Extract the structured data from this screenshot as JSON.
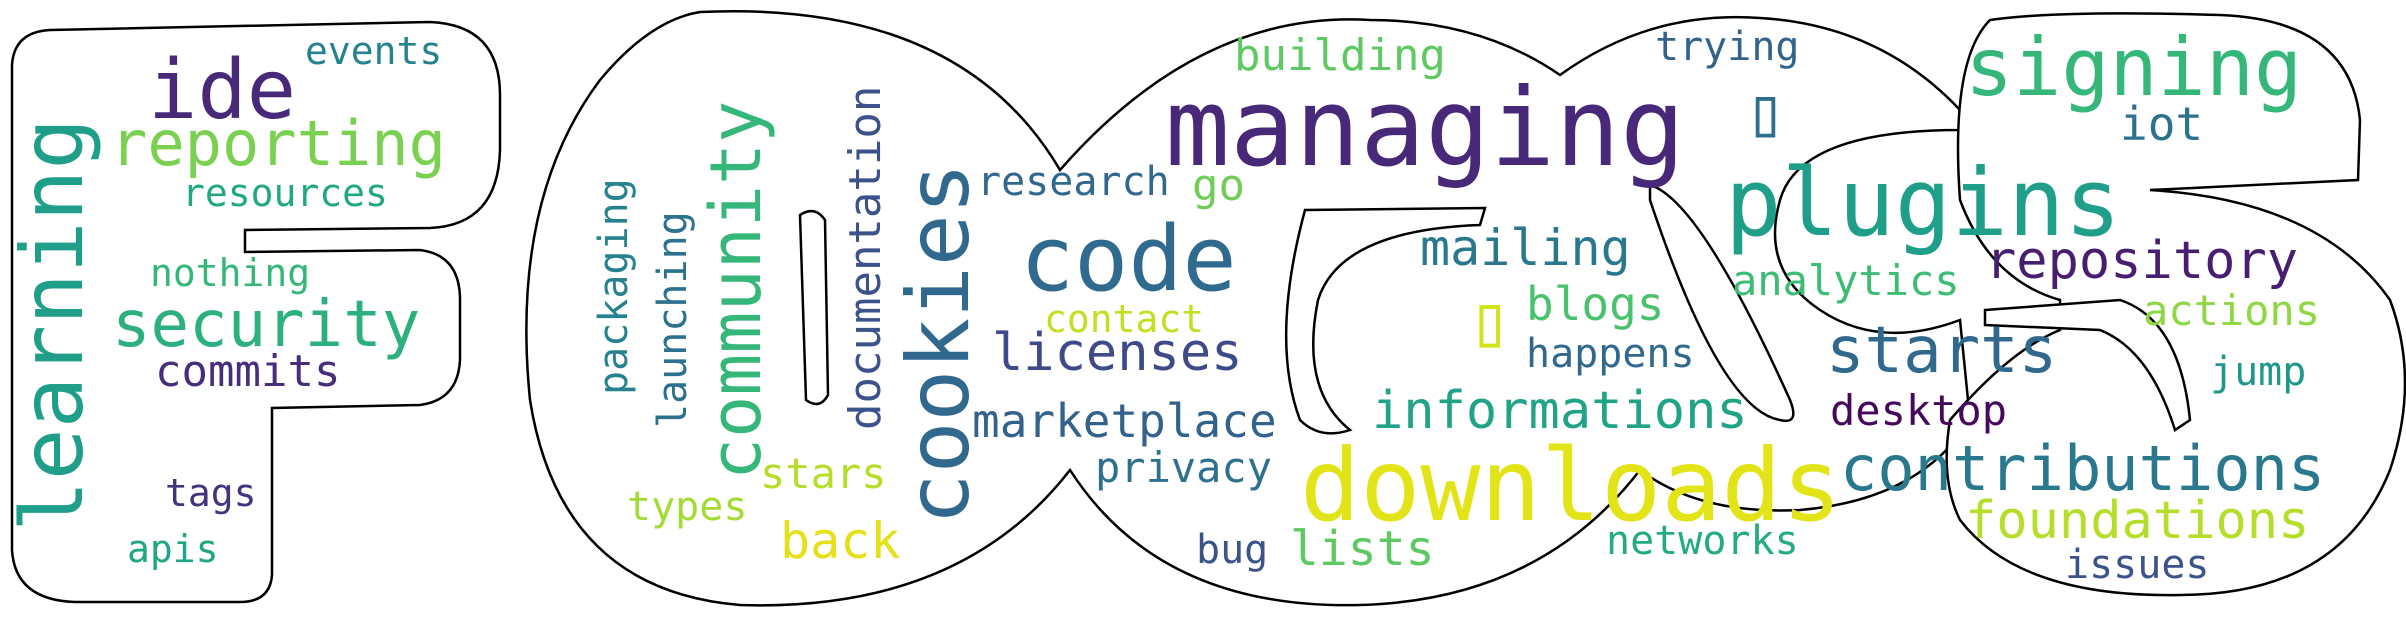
{
  "palette": {
    "purple_dark": "#44106a",
    "purple": "#482878",
    "indigo": "#3e4a89",
    "blue": "#31688e",
    "teal_blue": "#26828e",
    "teal": "#1f9e89",
    "green_teal": "#35b779",
    "green": "#6ece58",
    "lime": "#b5de2b",
    "yellow": "#e4e01a"
  },
  "words": {
    "learning": {
      "text": "learning",
      "color": "#1f9e89"
    },
    "ide": {
      "text": "ide",
      "color": "#482878"
    },
    "events": {
      "text": "events",
      "color": "#26828e"
    },
    "reporting": {
      "text": "reporting",
      "color": "#7ad151"
    },
    "resources": {
      "text": "resources",
      "color": "#22a785"
    },
    "nothing": {
      "text": "nothing",
      "color": "#35b779"
    },
    "security": {
      "text": "security",
      "color": "#2cb17e"
    },
    "commits": {
      "text": "commits",
      "color": "#472d7b"
    },
    "tags": {
      "text": "tags",
      "color": "#46337f"
    },
    "apis": {
      "text": "apis",
      "color": "#21a685"
    },
    "packaging": {
      "text": "packaging",
      "color": "#26828e"
    },
    "launching": {
      "text": "launching",
      "color": "#2c728e"
    },
    "community": {
      "text": "community",
      "color": "#35b779"
    },
    "documentation": {
      "text": "documentation",
      "color": "#3b528b"
    },
    "cookies": {
      "text": "cookies",
      "color": "#31688e"
    },
    "types": {
      "text": "types",
      "color": "#a5db36"
    },
    "stars": {
      "text": "stars",
      "color": "#b5de2b"
    },
    "back": {
      "text": "back",
      "color": "#e4e01a"
    },
    "building": {
      "text": "building",
      "color": "#5ec962"
    },
    "managing": {
      "text": "managing",
      "color": "#482878"
    },
    "research": {
      "text": "research",
      "color": "#31688e"
    },
    "go": {
      "text": "go",
      "color": "#6ece58"
    },
    "code": {
      "text": "code",
      "color": "#306a8e"
    },
    "contact": {
      "text": "contact",
      "color": "#c2df23"
    },
    "licenses": {
      "text": "licenses",
      "color": "#3e4a89"
    },
    "marketplace": {
      "text": "marketplace",
      "color": "#33638d"
    },
    "privacy": {
      "text": "privacy",
      "color": "#2d718e"
    },
    "downloads": {
      "text": "downloads",
      "color": "#e2e418"
    },
    "bug": {
      "text": "bug",
      "color": "#3b528b"
    },
    "lists": {
      "text": "lists",
      "color": "#5ec962"
    },
    "trying": {
      "text": "trying",
      "color": "#33638d"
    },
    "glyph_box_1": {
      "text": "▯",
      "color": "#2d708e"
    },
    "mailing": {
      "text": "mailing",
      "color": "#2a788e"
    },
    "glyph_box_2": {
      "text": "▯",
      "color": "#d2e21b"
    },
    "blogs": {
      "text": "blogs",
      "color": "#4ac16d"
    },
    "happens": {
      "text": "happens",
      "color": "#31688e"
    },
    "informations": {
      "text": "informations",
      "color": "#20a386"
    },
    "networks": {
      "text": "networks",
      "color": "#25ab82"
    },
    "signing": {
      "text": "signing",
      "color": "#35b779"
    },
    "iot": {
      "text": "iot",
      "color": "#2c728e"
    },
    "plugins": {
      "text": "plugins",
      "color": "#1f9e89"
    },
    "analytics": {
      "text": "analytics",
      "color": "#3dbc74"
    },
    "repository": {
      "text": "repository",
      "color": "#481f70"
    },
    "actions": {
      "text": "actions",
      "color": "#8fd744"
    },
    "starts": {
      "text": "starts",
      "color": "#31688e"
    },
    "jump": {
      "text": "jump",
      "color": "#1f988b"
    },
    "desktop": {
      "text": "desktop",
      "color": "#46085c"
    },
    "contributions": {
      "text": "contributions",
      "color": "#2a788e"
    },
    "foundations": {
      "text": "foundations",
      "color": "#b5de2b"
    },
    "issues": {
      "text": "issues",
      "color": "#3b528b"
    }
  }
}
